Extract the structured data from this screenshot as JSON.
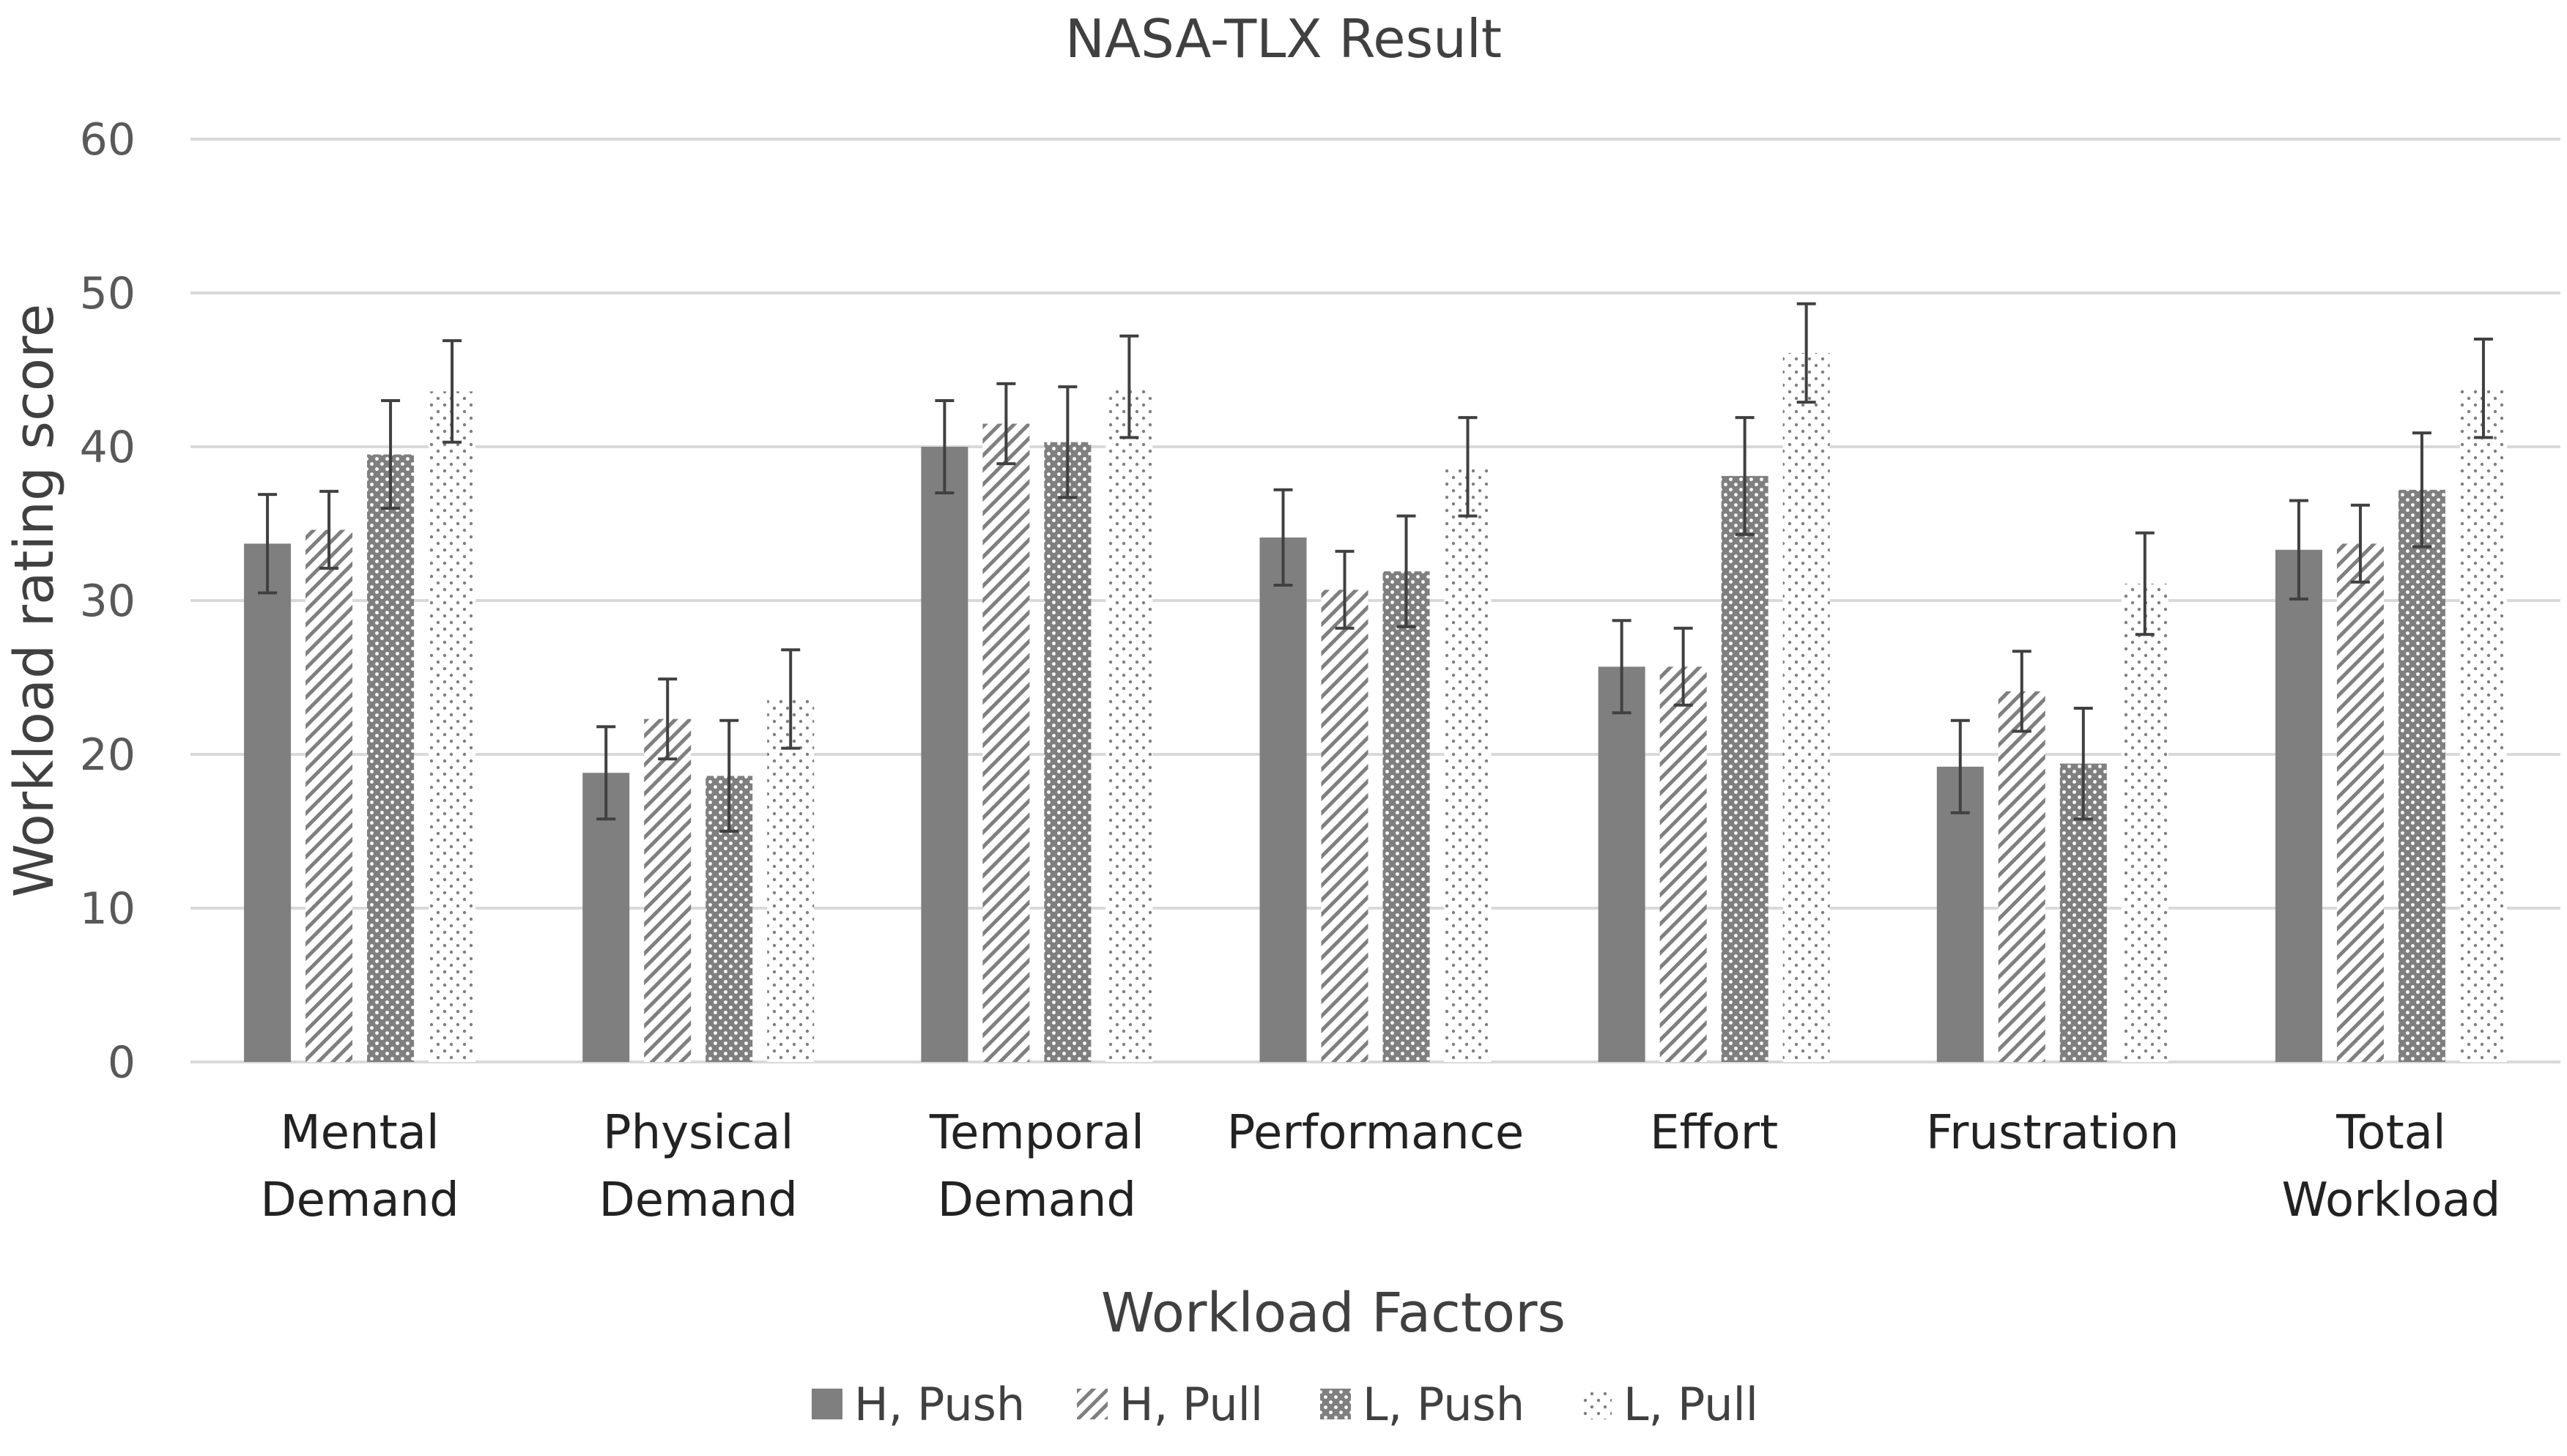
{
  "chart_data": {
    "type": "bar",
    "title": "NASA-TLX Result",
    "xlabel": "Workload Factors",
    "ylabel": "Workload rating score",
    "ylim": [
      0,
      60
    ],
    "yticks": [
      0,
      10,
      20,
      30,
      40,
      50,
      60
    ],
    "grid": true,
    "legend_position": "bottom",
    "categories": [
      [
        "Mental",
        "Demand"
      ],
      [
        "Physical",
        "Demand"
      ],
      [
        "Temporal",
        "Demand"
      ],
      [
        "Performance"
      ],
      [
        "Effort"
      ],
      [
        "Frustration"
      ],
      [
        "Total",
        "Workload"
      ]
    ],
    "series": [
      {
        "name": "H, Push",
        "pattern": "solid",
        "values": [
          33.7,
          18.8,
          40.0,
          34.1,
          25.7,
          19.2,
          33.3
        ],
        "errors": [
          3.2,
          3.0,
          3.0,
          3.1,
          3.0,
          3.0,
          3.2
        ]
      },
      {
        "name": "H, Pull",
        "pattern": "diagonal",
        "values": [
          34.6,
          22.3,
          41.5,
          30.7,
          25.7,
          24.1,
          33.7
        ],
        "errors": [
          2.5,
          2.6,
          2.6,
          2.5,
          2.5,
          2.6,
          2.5
        ]
      },
      {
        "name": "L, Push",
        "pattern": "dots",
        "values": [
          39.5,
          18.6,
          40.3,
          31.9,
          38.1,
          19.4,
          37.2
        ],
        "errors": [
          3.5,
          3.6,
          3.6,
          3.6,
          3.8,
          3.6,
          3.7
        ]
      },
      {
        "name": "L, Pull",
        "pattern": "sparse-dots",
        "values": [
          43.6,
          23.6,
          43.9,
          38.7,
          46.1,
          31.1,
          43.8
        ],
        "errors": [
          3.3,
          3.2,
          3.3,
          3.2,
          3.2,
          3.3,
          3.2
        ]
      }
    ],
    "colors": {
      "bar": "#7f7f7f",
      "grid": "#d9d9d9",
      "error": "#404040"
    }
  }
}
